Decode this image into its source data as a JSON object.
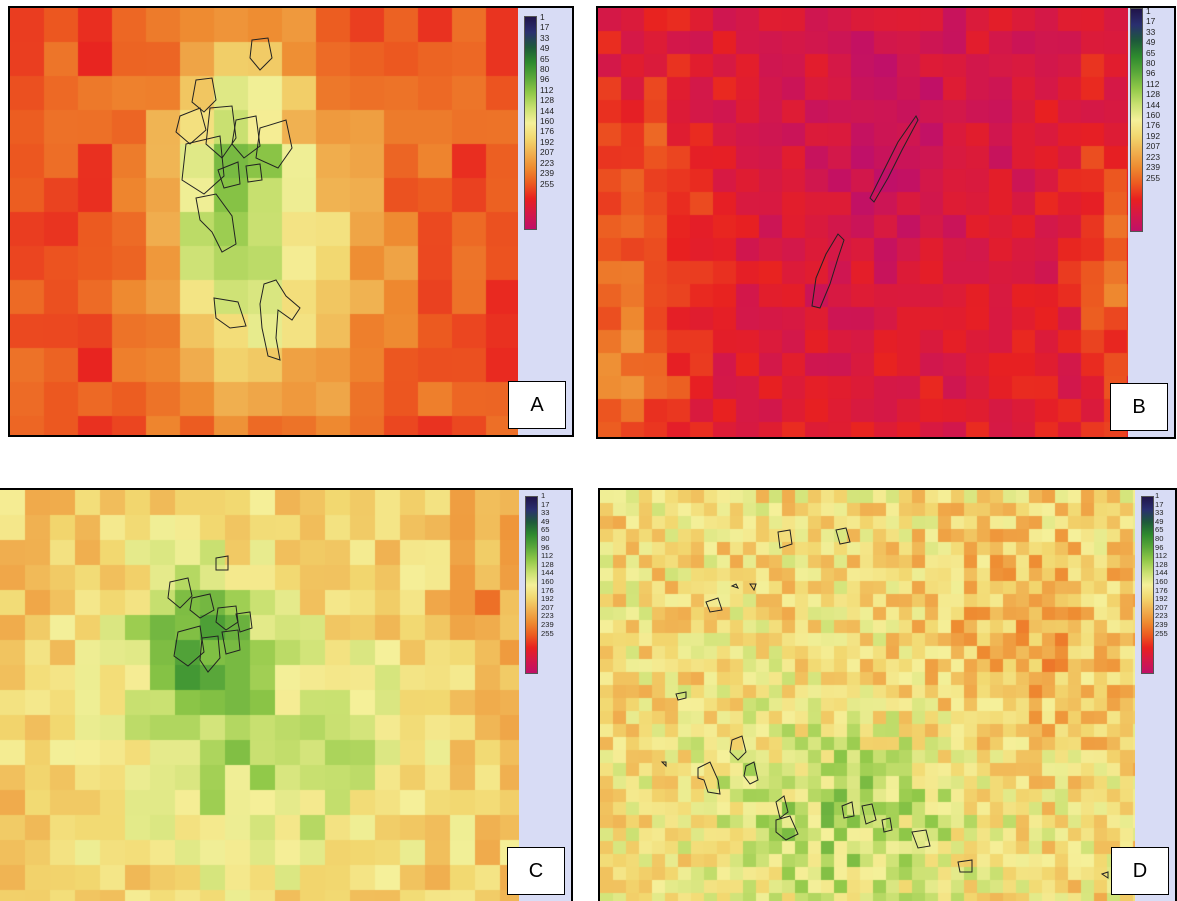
{
  "legend": {
    "ticks": [
      "1",
      "17",
      "33",
      "49",
      "65",
      "80",
      "96",
      "112",
      "128",
      "144",
      "160",
      "176",
      "192",
      "207",
      "223",
      "239",
      "255"
    ],
    "colors": [
      "#20144a",
      "#2a2f70",
      "#1d5a3a",
      "#2e8a2e",
      "#5aa83a",
      "#90c848",
      "#c8e070",
      "#f5f09a",
      "#f2d870",
      "#f0b050",
      "#ee8a30",
      "#ec5a20",
      "#e82020",
      "#d41848",
      "#c01068"
    ]
  },
  "panels": [
    {
      "id": "A",
      "label": "A"
    },
    {
      "id": "B",
      "label": "B"
    },
    {
      "id": "C",
      "label": "C"
    },
    {
      "id": "D",
      "label": "D"
    }
  ]
}
